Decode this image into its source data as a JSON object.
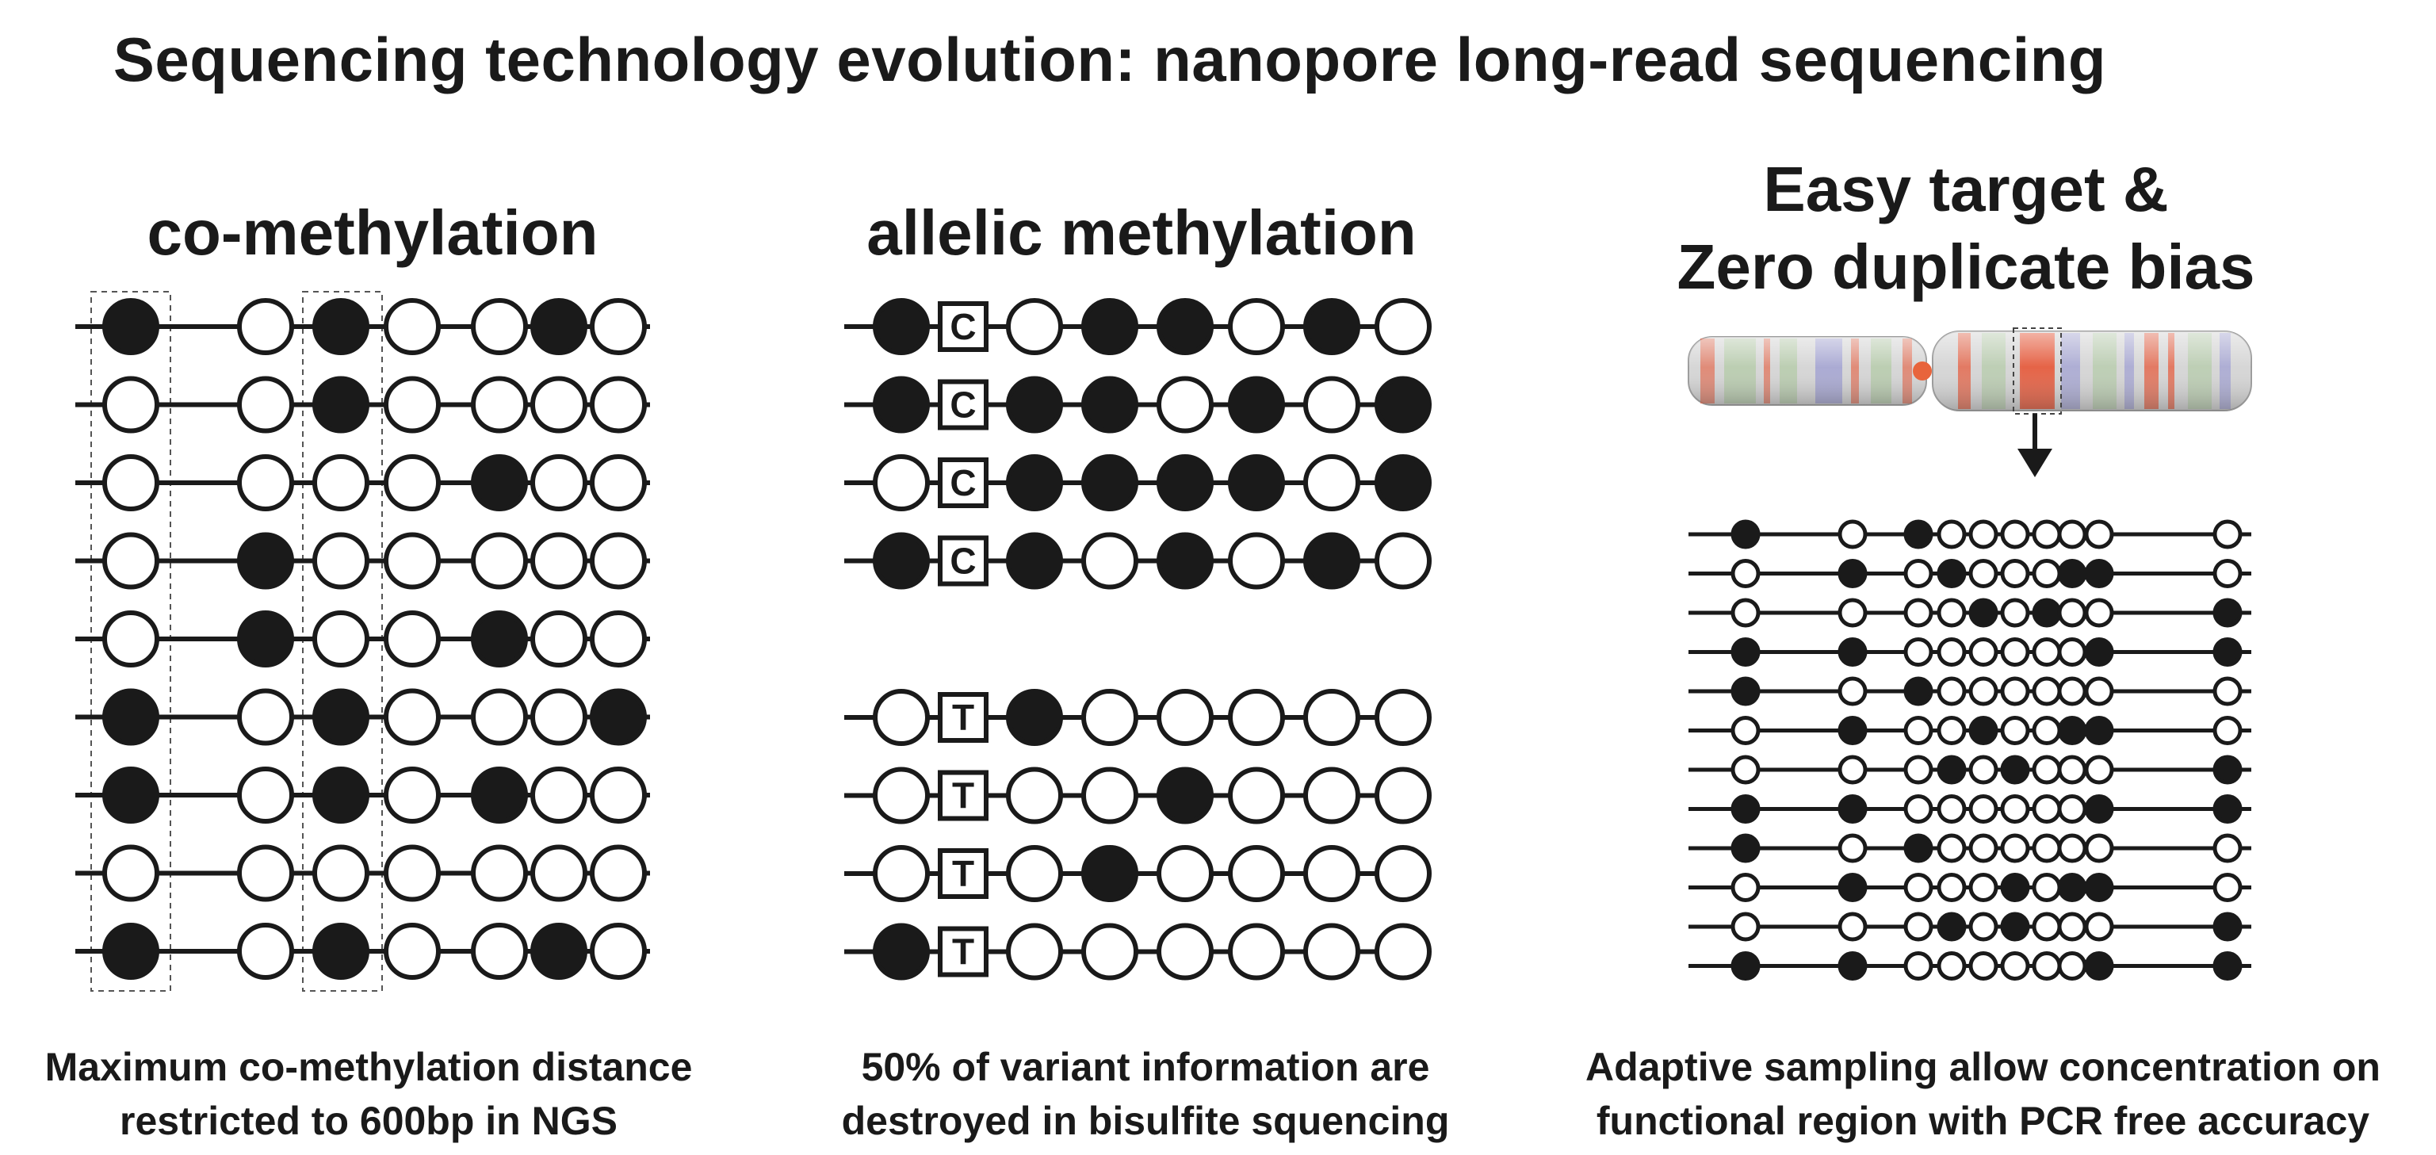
{
  "title": "Sequencing technology evolution: nanopore long-read sequencing",
  "panels": [
    {
      "heading": "co-methylation",
      "caption_lines": [
        "Maximum co-methylation distance",
        "restricted to 600bp in NGS"
      ],
      "reads": [
        [
          1,
          0,
          1,
          0,
          0,
          1,
          0
        ],
        [
          0,
          0,
          1,
          0,
          0,
          0,
          0
        ],
        [
          0,
          0,
          0,
          0,
          1,
          0,
          0
        ],
        [
          0,
          1,
          0,
          0,
          0,
          0,
          0
        ],
        [
          0,
          1,
          0,
          0,
          1,
          0,
          0
        ],
        [
          1,
          0,
          1,
          0,
          0,
          0,
          1
        ],
        [
          1,
          0,
          1,
          0,
          1,
          0,
          0
        ],
        [
          0,
          0,
          0,
          0,
          0,
          0,
          0
        ],
        [
          1,
          0,
          1,
          0,
          0,
          1,
          0
        ]
      ]
    },
    {
      "heading": "allelic methylation",
      "caption_lines": [
        "50% of variant information are",
        "destroyed in bisulfite squencing"
      ],
      "allele_C": "C",
      "allele_T": "T",
      "reads_C": [
        [
          1,
          0,
          1,
          1,
          0,
          1,
          0
        ],
        [
          1,
          1,
          1,
          0,
          1,
          0,
          1
        ],
        [
          0,
          1,
          1,
          1,
          1,
          0,
          1
        ],
        [
          1,
          1,
          0,
          1,
          0,
          1,
          0
        ]
      ],
      "reads_T": [
        [
          0,
          1,
          0,
          0,
          0,
          0,
          0
        ],
        [
          0,
          0,
          0,
          1,
          0,
          0,
          0
        ],
        [
          0,
          0,
          1,
          0,
          0,
          0,
          0
        ],
        [
          1,
          0,
          0,
          0,
          0,
          0,
          0
        ]
      ]
    },
    {
      "heading_lines": [
        "Easy target &",
        "Zero duplicate bias"
      ],
      "caption_lines": [
        "Adaptive sampling allow concentration on",
        "functional region with PCR free accuracy"
      ],
      "reads": [
        [
          1,
          0,
          1,
          0,
          0,
          0,
          0,
          0,
          0,
          0
        ],
        [
          0,
          1,
          0,
          1,
          0,
          0,
          0,
          1,
          1,
          0
        ],
        [
          0,
          0,
          0,
          0,
          1,
          0,
          1,
          0,
          0,
          1
        ],
        [
          1,
          1,
          0,
          0,
          0,
          0,
          0,
          0,
          1,
          1
        ],
        [
          1,
          0,
          1,
          0,
          0,
          0,
          0,
          0,
          0,
          0
        ],
        [
          0,
          1,
          0,
          0,
          1,
          0,
          0,
          1,
          1,
          0
        ],
        [
          0,
          0,
          0,
          1,
          0,
          1,
          0,
          0,
          0,
          1
        ],
        [
          1,
          1,
          0,
          0,
          0,
          0,
          0,
          0,
          1,
          1
        ],
        [
          1,
          0,
          1,
          0,
          0,
          0,
          0,
          0,
          0,
          0
        ],
        [
          0,
          1,
          0,
          0,
          0,
          1,
          0,
          1,
          1,
          0
        ],
        [
          0,
          0,
          0,
          1,
          0,
          1,
          0,
          0,
          0,
          1
        ],
        [
          1,
          1,
          0,
          0,
          0,
          0,
          0,
          0,
          1,
          1
        ]
      ]
    }
  ],
  "colors": {
    "ink": "#1a1a1a",
    "chrom_body": "#d4d4d4",
    "band_red": "#e45a3c",
    "band_blue": "#8e8ed0",
    "band_green": "#a9c69a",
    "centromere": "#e8643c"
  }
}
